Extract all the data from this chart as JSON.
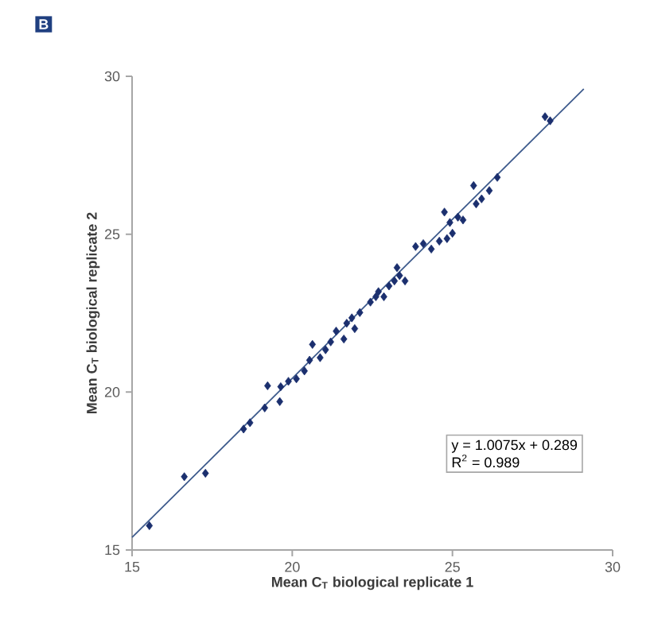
{
  "chart_data": {
    "type": "scatter",
    "title": "B",
    "xlabel": "Mean C$_{T}$ biological replicate 1",
    "ylabel": "Mean C$_{T}$ biological replicate 2",
    "xlim": [
      15,
      30
    ],
    "ylim": [
      15,
      30
    ],
    "xticks": [
      15,
      20,
      25,
      30
    ],
    "yticks": [
      15,
      20,
      25,
      30
    ],
    "grid": false,
    "series": [
      {
        "marker": "diamond",
        "color": "#1b2f6e",
        "x": [
          15.54,
          16.63,
          17.29,
          18.48,
          18.68,
          19.14,
          19.23,
          19.61,
          19.64,
          19.88,
          20.13,
          20.38,
          20.54,
          20.63,
          20.87,
          21.04,
          21.2,
          21.37,
          21.61,
          21.7,
          21.86,
          21.95,
          22.11,
          22.44,
          22.61,
          22.69,
          22.86,
          23.02,
          23.19,
          23.27,
          23.35,
          23.52,
          23.85,
          24.09,
          24.34,
          24.59,
          24.83,
          24.75,
          24.92,
          25.0,
          25.17,
          25.33,
          25.66,
          25.74,
          25.91,
          26.15,
          26.4,
          27.89,
          28.05
        ],
        "values": [
          15.77,
          17.32,
          17.43,
          18.83,
          19.03,
          19.5,
          20.2,
          19.7,
          20.17,
          20.34,
          20.42,
          20.67,
          21.01,
          21.51,
          21.09,
          21.34,
          21.59,
          21.93,
          21.68,
          22.18,
          22.35,
          22.01,
          22.52,
          22.85,
          23.02,
          23.18,
          23.02,
          23.36,
          23.52,
          23.94,
          23.69,
          23.52,
          24.61,
          24.7,
          24.53,
          24.78,
          24.86,
          25.7,
          25.37,
          25.03,
          25.54,
          25.45,
          26.54,
          25.96,
          26.12,
          26.38,
          26.8,
          28.72,
          28.59
        ]
      },
      {
        "type": "line",
        "marker": "none",
        "color": "#3d5a8c",
        "x": [
          15,
          29.1
        ],
        "values": [
          15.4,
          29.6
        ]
      }
    ],
    "annotations": [
      "y = 1.0075x + 0.289",
      "R$^{2}$ = 0.989"
    ]
  }
}
